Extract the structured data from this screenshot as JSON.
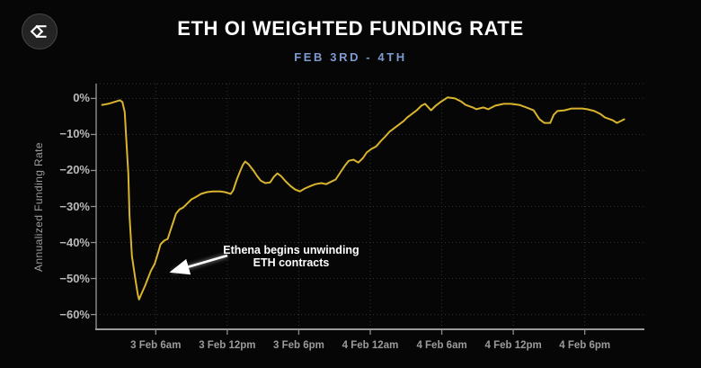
{
  "logo": {
    "icon": "sigma-diamond-logo-icon"
  },
  "chart_data": {
    "type": "line",
    "title": "ETH OI WEIGHTED FUNDING RATE",
    "subtitle": "FEB 3RD - 4TH",
    "ylabel": "Annualized Funding Rate",
    "xlabel": "",
    "legend": "none",
    "grid": "dotted",
    "line_color": "#d9b42e",
    "subtitle_color": "#7d9ad0",
    "background_color": "#060606",
    "ylim": [
      -64.1,
      4.1
    ],
    "xlim_hours": [
      1,
      47
    ],
    "x_unit": "hours since 3 Feb 12am",
    "y_ticks": [
      {
        "value": 0,
        "label": "0%"
      },
      {
        "value": -10,
        "label": "−10%"
      },
      {
        "value": -20,
        "label": "−20%"
      },
      {
        "value": -30,
        "label": "−30%"
      },
      {
        "value": -40,
        "label": "−40%"
      },
      {
        "value": -50,
        "label": "−50%"
      },
      {
        "value": -60,
        "label": "−60%"
      }
    ],
    "x_ticks": [
      {
        "value": 6,
        "label": "3 Feb 6am"
      },
      {
        "value": 12,
        "label": "3 Feb 12pm"
      },
      {
        "value": 18,
        "label": "3 Feb 6pm"
      },
      {
        "value": 24,
        "label": "4 Feb 12am"
      },
      {
        "value": 30,
        "label": "4 Feb 6am"
      },
      {
        "value": 36,
        "label": "4 Feb 12pm"
      },
      {
        "value": 42,
        "label": "4 Feb 6pm"
      }
    ],
    "annotation": {
      "line1": "Ethena begins unwinding",
      "line2": "ETH contracts",
      "points_to": {
        "t_hours": 5.2,
        "value": -48
      }
    },
    "series": [
      {
        "name": "ETH OI weighted funding rate (annualized %)",
        "points": [
          [
            1.5,
            -1.8
          ],
          [
            2.0,
            -1.5
          ],
          [
            2.5,
            -1.0
          ],
          [
            3.0,
            -0.5
          ],
          [
            3.2,
            -1.0
          ],
          [
            3.4,
            -3.8
          ],
          [
            3.5,
            -10.0
          ],
          [
            3.7,
            -21.0
          ],
          [
            3.8,
            -32.5
          ],
          [
            4.0,
            -43.8
          ],
          [
            4.3,
            -50.5
          ],
          [
            4.5,
            -54.5
          ],
          [
            4.6,
            -55.8
          ],
          [
            4.9,
            -53.5
          ],
          [
            5.1,
            -52.0
          ],
          [
            5.4,
            -49.5
          ],
          [
            5.6,
            -47.8
          ],
          [
            5.9,
            -46.0
          ],
          [
            6.2,
            -42.8
          ],
          [
            6.4,
            -40.5
          ],
          [
            6.7,
            -39.5
          ],
          [
            7.0,
            -39.0
          ],
          [
            7.2,
            -37.0
          ],
          [
            7.5,
            -34.0
          ],
          [
            7.7,
            -32.0
          ],
          [
            8.0,
            -30.8
          ],
          [
            8.3,
            -30.3
          ],
          [
            8.6,
            -29.3
          ],
          [
            9.0,
            -28.0
          ],
          [
            9.4,
            -27.3
          ],
          [
            9.8,
            -26.5
          ],
          [
            10.3,
            -26.0
          ],
          [
            10.8,
            -25.8
          ],
          [
            11.4,
            -25.8
          ],
          [
            11.8,
            -26.0
          ],
          [
            12.3,
            -26.5
          ],
          [
            12.5,
            -25.5
          ],
          [
            12.8,
            -22.5
          ],
          [
            13.1,
            -20.0
          ],
          [
            13.3,
            -18.5
          ],
          [
            13.5,
            -17.5
          ],
          [
            13.8,
            -18.3
          ],
          [
            14.2,
            -20.0
          ],
          [
            14.5,
            -21.5
          ],
          [
            14.8,
            -22.8
          ],
          [
            15.2,
            -23.5
          ],
          [
            15.6,
            -23.3
          ],
          [
            15.9,
            -21.8
          ],
          [
            16.2,
            -20.8
          ],
          [
            16.5,
            -21.5
          ],
          [
            16.9,
            -23.0
          ],
          [
            17.3,
            -24.3
          ],
          [
            17.7,
            -25.3
          ],
          [
            18.1,
            -25.8
          ],
          [
            18.5,
            -25.0
          ],
          [
            19.0,
            -24.3
          ],
          [
            19.4,
            -23.8
          ],
          [
            19.9,
            -23.5
          ],
          [
            20.3,
            -23.8
          ],
          [
            20.6,
            -23.3
          ],
          [
            21.1,
            -22.5
          ],
          [
            21.5,
            -20.5
          ],
          [
            21.9,
            -18.5
          ],
          [
            22.2,
            -17.3
          ],
          [
            22.6,
            -17.0
          ],
          [
            23.0,
            -17.8
          ],
          [
            23.4,
            -16.5
          ],
          [
            23.7,
            -15.0
          ],
          [
            24.1,
            -14.0
          ],
          [
            24.5,
            -13.3
          ],
          [
            24.9,
            -11.8
          ],
          [
            25.2,
            -10.8
          ],
          [
            25.6,
            -9.3
          ],
          [
            26.0,
            -8.3
          ],
          [
            26.4,
            -7.3
          ],
          [
            26.8,
            -6.3
          ],
          [
            27.1,
            -5.3
          ],
          [
            27.5,
            -4.3
          ],
          [
            27.9,
            -3.3
          ],
          [
            28.3,
            -2.0
          ],
          [
            28.6,
            -1.5
          ],
          [
            29.1,
            -3.3
          ],
          [
            29.5,
            -2.0
          ],
          [
            29.9,
            -1.0
          ],
          [
            30.5,
            0.3
          ],
          [
            31.1,
            0.0
          ],
          [
            31.6,
            -0.8
          ],
          [
            32.0,
            -1.8
          ],
          [
            32.6,
            -2.5
          ],
          [
            32.9,
            -3.0
          ],
          [
            33.5,
            -2.5
          ],
          [
            33.9,
            -3.0
          ],
          [
            34.5,
            -2.0
          ],
          [
            35.2,
            -1.5
          ],
          [
            35.8,
            -1.5
          ],
          [
            36.5,
            -1.8
          ],
          [
            37.1,
            -2.5
          ],
          [
            37.7,
            -3.3
          ],
          [
            38.2,
            -5.8
          ],
          [
            38.6,
            -6.8
          ],
          [
            39.1,
            -6.8
          ],
          [
            39.4,
            -4.5
          ],
          [
            39.7,
            -3.5
          ],
          [
            40.3,
            -3.3
          ],
          [
            40.9,
            -2.8
          ],
          [
            41.4,
            -2.8
          ],
          [
            41.8,
            -2.8
          ],
          [
            42.2,
            -3.0
          ],
          [
            42.8,
            -3.5
          ],
          [
            43.3,
            -4.3
          ],
          [
            43.7,
            -5.3
          ],
          [
            44.3,
            -6.0
          ],
          [
            44.7,
            -6.8
          ],
          [
            45.3,
            -5.8
          ]
        ]
      }
    ]
  }
}
